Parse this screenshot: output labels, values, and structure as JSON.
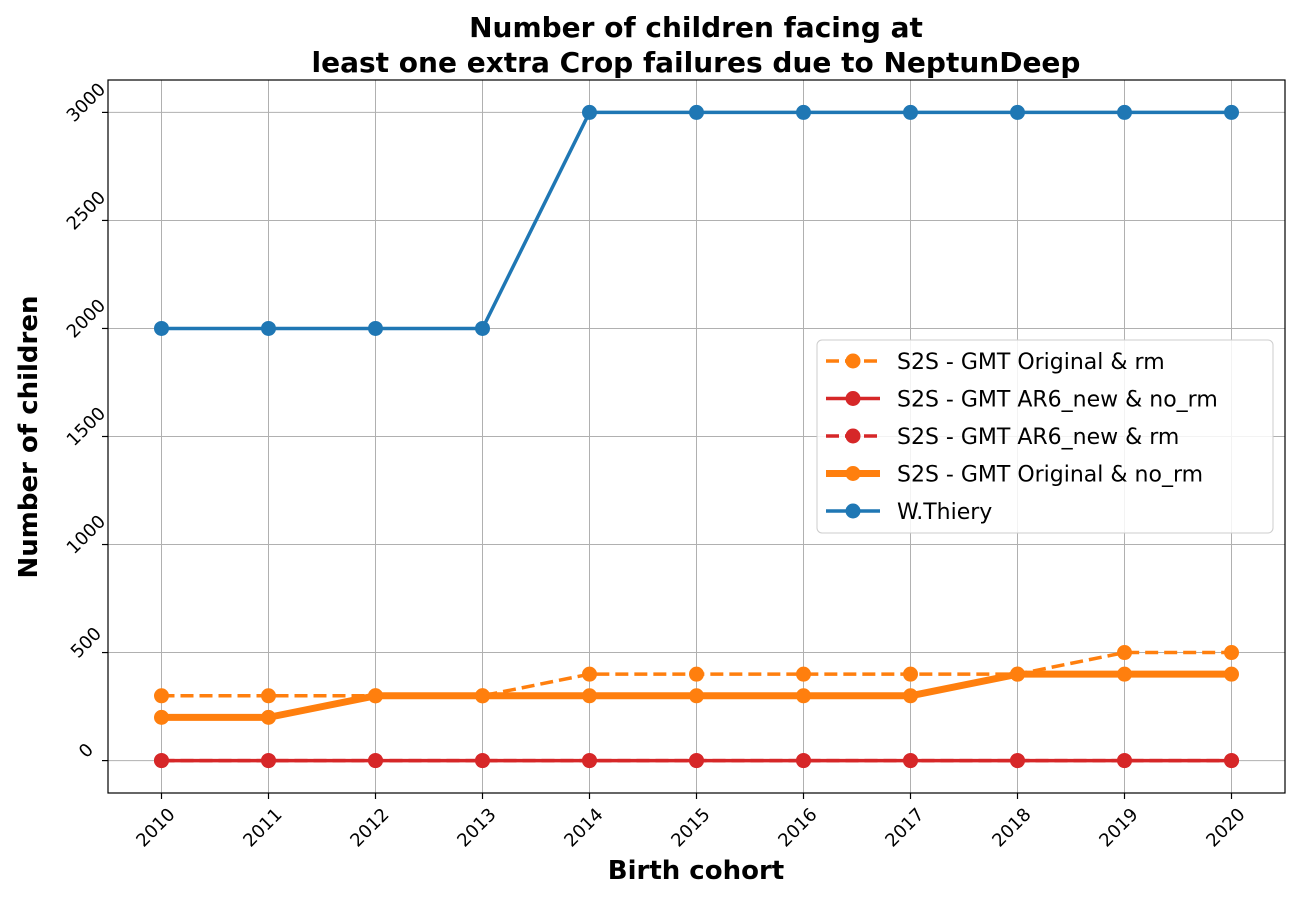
{
  "chart_data": {
    "type": "line",
    "title_lines": [
      "Number of children facing at",
      "least one extra Crop failures due to NeptunDeep"
    ],
    "xlabel": "Birth cohort",
    "ylabel": "Number of children",
    "x": [
      2010,
      2011,
      2012,
      2013,
      2014,
      2015,
      2016,
      2017,
      2018,
      2019,
      2020
    ],
    "xticks": [
      "2010",
      "2011",
      "2012",
      "2013",
      "2014",
      "2015",
      "2016",
      "2017",
      "2018",
      "2019",
      "2020"
    ],
    "yticks": [
      "0",
      "500",
      "1000",
      "1500",
      "2000",
      "2500",
      "3000"
    ],
    "ytick_values": [
      0,
      500,
      1000,
      1500,
      2000,
      2500,
      3000
    ],
    "xlim": [
      2009.5,
      2020.5
    ],
    "ylim": [
      -150,
      3150
    ],
    "grid": true,
    "legend_position": "center-right",
    "series": [
      {
        "name": "W.Thiery",
        "color": "#1f77b4",
        "style": "solid",
        "weight": "normal",
        "values": [
          2000,
          2000,
          2000,
          2000,
          3000,
          3000,
          3000,
          3000,
          3000,
          3000,
          3000
        ]
      },
      {
        "name": "S2S - GMT Original & rm",
        "color": "#ff7f0e",
        "style": "dashed",
        "weight": "normal",
        "values": [
          300,
          300,
          300,
          300,
          400,
          400,
          400,
          400,
          400,
          500,
          500
        ]
      },
      {
        "name": "S2S - GMT Original & no_rm",
        "color": "#ff7f0e",
        "style": "solid",
        "weight": "thick",
        "values": [
          200,
          200,
          300,
          300,
          300,
          300,
          300,
          300,
          400,
          400,
          400
        ]
      },
      {
        "name": "S2S - GMT AR6_new & rm",
        "color": "#d62728",
        "style": "dashed",
        "weight": "normal",
        "values": [
          0,
          0,
          0,
          0,
          0,
          0,
          0,
          0,
          0,
          0,
          0
        ]
      },
      {
        "name": "S2S - GMT AR6_new & no_rm",
        "color": "#d62728",
        "style": "solid",
        "weight": "normal",
        "values": [
          0,
          0,
          0,
          0,
          0,
          0,
          0,
          0,
          0,
          0,
          0
        ]
      }
    ],
    "legend_order": [
      "S2S - GMT Original & rm",
      "S2S - GMT AR6_new & no_rm",
      "S2S - GMT AR6_new & rm",
      "S2S - GMT Original & no_rm",
      "W.Thiery"
    ]
  }
}
